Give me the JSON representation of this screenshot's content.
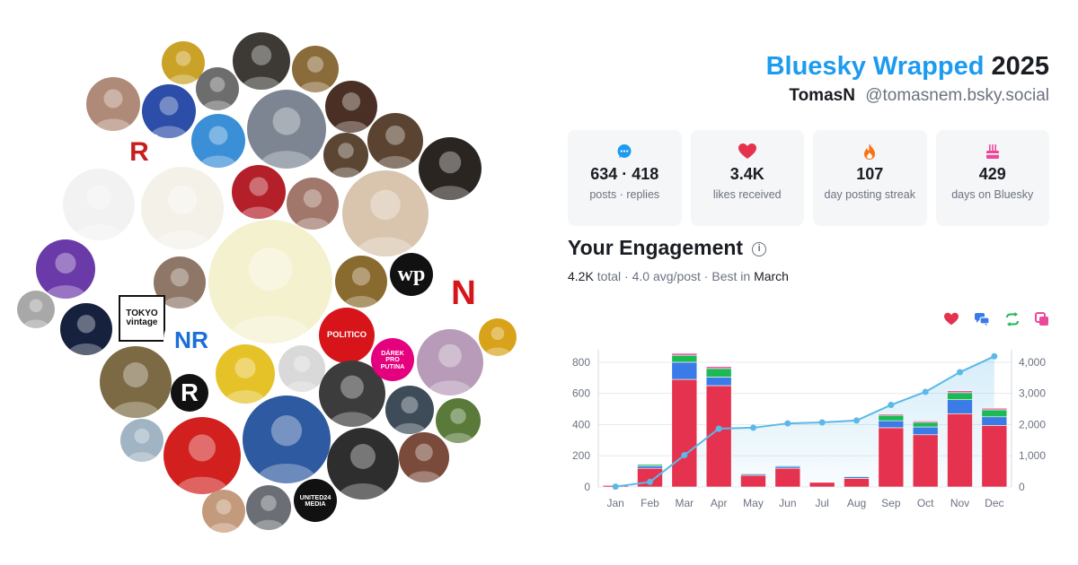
{
  "header": {
    "brand": "Bluesky Wrapped",
    "year": "2025",
    "display_name": "TomasN",
    "handle": "@tomasnem.bsky.social"
  },
  "stats": [
    {
      "icon": "speech-bubble-icon",
      "value": "634 · 418",
      "label": "posts · replies",
      "color": "#1d9bf0"
    },
    {
      "icon": "heart-icon",
      "value": "3.4K",
      "label": "likes received",
      "color": "#e5334f"
    },
    {
      "icon": "flame-icon",
      "value": "107",
      "label": "day posting streak",
      "color": "#f97316"
    },
    {
      "icon": "cake-icon",
      "value": "429",
      "label": "days on Bluesky",
      "color": "#ec4899"
    }
  ],
  "engagement": {
    "title": "Your Engagement",
    "total": "4.2K",
    "total_word": "total",
    "avg": "4.0 avg/post",
    "best_prefix": "Best in",
    "best_month": "March"
  },
  "legend_icons": [
    {
      "name": "likes",
      "icon": "heart-icon",
      "color": "#e5334f"
    },
    {
      "name": "replies",
      "icon": "reply-bubbles-icon",
      "color": "#3b7be8"
    },
    {
      "name": "reposts",
      "icon": "repost-icon",
      "color": "#1db954"
    },
    {
      "name": "quotes",
      "icon": "quote-icon",
      "color": "#ec4899"
    }
  ],
  "avatars": [
    {
      "name": "avatar-ua-flag",
      "text": "",
      "bg": "#c9a227"
    },
    {
      "name": "avatar-man-suit",
      "text": "",
      "bg": "#3d3a35"
    },
    {
      "name": "avatar-boba-fett",
      "text": "",
      "bg": "#8a6b3a"
    },
    {
      "name": "avatar-woman-sunglasses",
      "text": "",
      "bg": "#b08a78"
    },
    {
      "name": "avatar-eu-badge",
      "text": "",
      "bg": "#2c4da8"
    },
    {
      "name": "avatar-photographer",
      "text": "",
      "bg": "#6d6d6d"
    },
    {
      "name": "avatar-cat",
      "text": "",
      "bg": "#7c8591"
    },
    {
      "name": "avatar-man-cigar",
      "text": "",
      "bg": "#4a2f24"
    },
    {
      "name": "avatar-man-ua-flag",
      "text": "",
      "bg": "#3a8fd6"
    },
    {
      "name": "avatar-bearded-man",
      "text": "",
      "bg": "#5a4330"
    },
    {
      "name": "avatar-r-logo",
      "text": "R",
      "bg": "#ffffff"
    },
    {
      "name": "avatar-woman-dark",
      "text": "",
      "bg": "#5b4634"
    },
    {
      "name": "avatar-soldiers",
      "text": "",
      "bg": "#2b2522"
    },
    {
      "name": "avatar-cartoon-glasses",
      "text": "",
      "bg": "#f2f2f2"
    },
    {
      "name": "avatar-dog-drawing",
      "text": "",
      "bg": "#f4f1e8"
    },
    {
      "name": "avatar-rooster",
      "text": "",
      "bg": "#b3202a"
    },
    {
      "name": "avatar-man-blurry",
      "text": "",
      "bg": "#a0776a"
    },
    {
      "name": "avatar-pixar-man",
      "text": "",
      "bg": "#d9c4ad"
    },
    {
      "name": "avatar-blue-logo",
      "text": "",
      "bg": "#ffffff"
    },
    {
      "name": "avatar-man-purple",
      "text": "",
      "bg": "#6a3aa8"
    },
    {
      "name": "avatar-doll",
      "text": "",
      "bg": "#ffffff"
    },
    {
      "name": "avatar-young-man",
      "text": "",
      "bg": "#8e7767"
    },
    {
      "name": "avatar-sketch-profile",
      "text": "",
      "bg": "#f4f1cf"
    },
    {
      "name": "avatar-painting-woman",
      "text": "",
      "bg": "#8a6b2f"
    },
    {
      "name": "avatar-wp-logo",
      "text": "wp",
      "bg": "#111111"
    },
    {
      "name": "avatar-n-logo",
      "text": "N",
      "bg": "#ffffff"
    },
    {
      "name": "avatar-man-mirror",
      "text": "",
      "bg": "#a8a8a8"
    },
    {
      "name": "avatar-tokyo-vintage",
      "text": "TOKYO vintage",
      "bg": "#ffffff"
    },
    {
      "name": "avatar-angel-statue",
      "text": "",
      "bg": "#16213e"
    },
    {
      "name": "avatar-nr-logo",
      "text": "NR",
      "bg": "#ffffff"
    },
    {
      "name": "avatar-politico",
      "text": "POLITICO",
      "bg": "#d7141a"
    },
    {
      "name": "avatar-eu-stars",
      "text": "",
      "bg": "#ffffff"
    },
    {
      "name": "avatar-woman-hat",
      "text": "",
      "bg": "#b79bb8"
    },
    {
      "name": "avatar-label-guy",
      "text": "",
      "bg": "#d9a21b"
    },
    {
      "name": "avatar-eeyore",
      "text": "",
      "bg": "#ffffff"
    },
    {
      "name": "avatar-man-outdoors",
      "text": "",
      "bg": "#7c6a44"
    },
    {
      "name": "avatar-r-circle",
      "text": "R",
      "bg": "#111111"
    },
    {
      "name": "avatar-man-beanie",
      "text": "",
      "bg": "#e6c229"
    },
    {
      "name": "avatar-drill",
      "text": "",
      "bg": "#d9d9d9"
    },
    {
      "name": "avatar-cat-suit",
      "text": "",
      "bg": "#3c3c3c"
    },
    {
      "name": "avatar-darek-pro-putina",
      "text": "DÁREK PRO PUTINA",
      "bg": "#e5007e"
    },
    {
      "name": "avatar-man-screen",
      "text": "",
      "bg": "#3e4c59"
    },
    {
      "name": "avatar-stadium",
      "text": "",
      "bg": "#5a7a3a"
    },
    {
      "name": "avatar-bald-man",
      "text": "",
      "bg": "#a0b4c4"
    },
    {
      "name": "avatar-equals-logo",
      "text": "",
      "bg": "#d1201e"
    },
    {
      "name": "avatar-navy-man",
      "text": "",
      "bg": "#2d5aa0"
    },
    {
      "name": "avatar-glasses-man",
      "text": "",
      "bg": "#2e2e2e"
    },
    {
      "name": "avatar-man-sunglasses",
      "text": "",
      "bg": "#7a4a3a"
    },
    {
      "name": "avatar-woman-smile",
      "text": "",
      "bg": "#c49a7c"
    },
    {
      "name": "avatar-man-grey",
      "text": "",
      "bg": "#6b6f75"
    },
    {
      "name": "avatar-united24",
      "text": "UNITED24 MEDIA",
      "bg": "#111111"
    }
  ],
  "chart_data": {
    "type": "bar",
    "categories": [
      "Jan",
      "Feb",
      "Mar",
      "Apr",
      "May",
      "Jun",
      "Jul",
      "Aug",
      "Sep",
      "Oct",
      "Nov",
      "Dec"
    ],
    "series": [
      {
        "name": "likes",
        "values": [
          10,
          120,
          690,
          650,
          75,
          120,
          30,
          55,
          380,
          335,
          470,
          395
        ],
        "color": "#e5334f"
      },
      {
        "name": "replies",
        "values": [
          3,
          15,
          110,
          55,
          8,
          12,
          3,
          10,
          45,
          50,
          90,
          55
        ],
        "color": "#3b7be8"
      },
      {
        "name": "reposts",
        "values": [
          2,
          10,
          45,
          55,
          5,
          5,
          2,
          5,
          35,
          30,
          45,
          45
        ],
        "color": "#1db954"
      },
      {
        "name": "quotes",
        "values": [
          0,
          3,
          12,
          12,
          2,
          2,
          1,
          2,
          8,
          8,
          12,
          10
        ],
        "color": "#ec4899"
      },
      {
        "name": "cumulative",
        "values": [
          10,
          160,
          1020,
          1870,
          1900,
          2040,
          2070,
          2130,
          2630,
          3050,
          3680,
          4190
        ],
        "color": "#5bb8e8"
      }
    ],
    "ylim": [
      0,
      880
    ],
    "y2lim": [
      0,
      4400
    ],
    "yticks": [
      0,
      200,
      400,
      600,
      800
    ],
    "ytick_labels": [
      "0",
      "200",
      "400",
      "600",
      "800"
    ],
    "y2ticks": [
      0,
      1000,
      2000,
      3000,
      4000
    ],
    "y2tick_labels": [
      "0",
      "1,000",
      "2,000",
      "3,000",
      "4,000"
    ],
    "grid": true
  }
}
